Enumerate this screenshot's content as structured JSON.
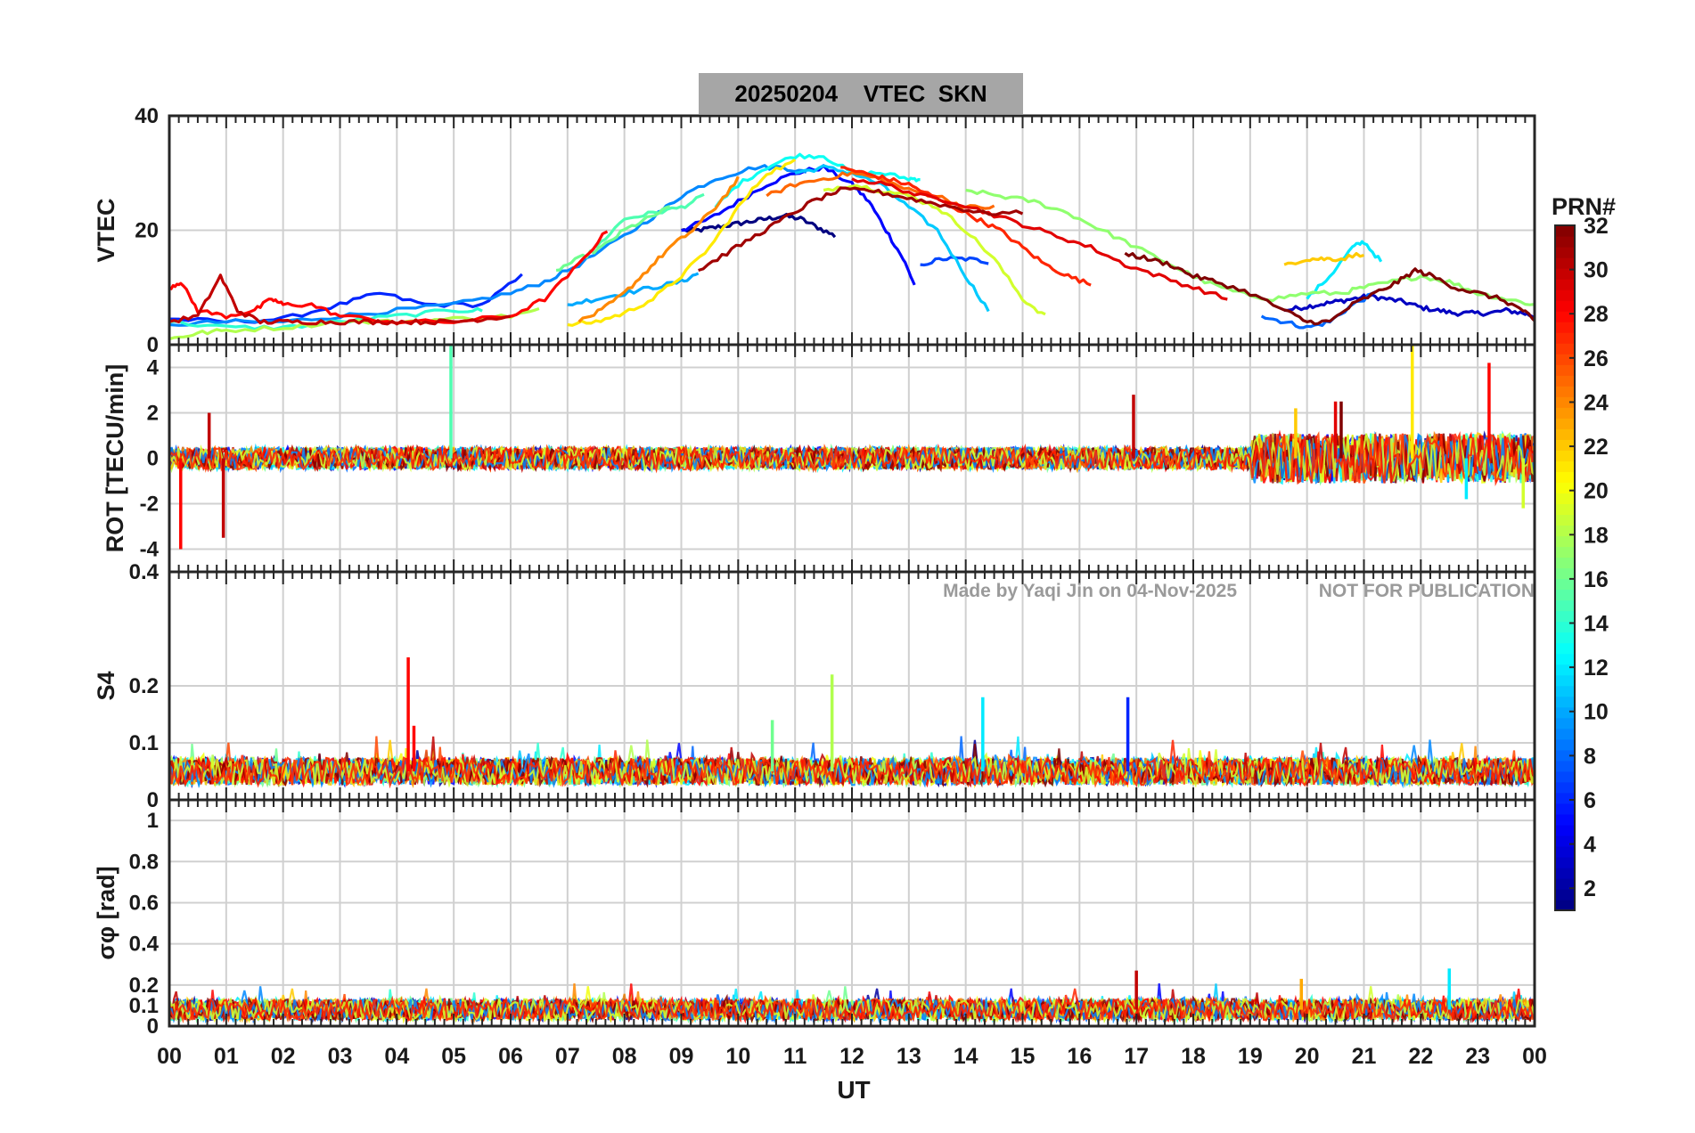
{
  "figure": {
    "title": "20250204    VTEC  SKN",
    "watermark_left": "Made by Yaqi Jin on 04-Nov-2025",
    "watermark_right": "NOT FOR PUBLICATION",
    "xlabel": "UT",
    "x_ticks": [
      "00",
      "01",
      "02",
      "03",
      "04",
      "05",
      "06",
      "07",
      "08",
      "09",
      "10",
      "11",
      "12",
      "13",
      "14",
      "15",
      "16",
      "17",
      "18",
      "19",
      "20",
      "21",
      "22",
      "23",
      "00"
    ]
  },
  "colorbar": {
    "label": "PRN#",
    "ticks": [
      "2",
      "4",
      "6",
      "8",
      "10",
      "12",
      "14",
      "16",
      "18",
      "20",
      "22",
      "24",
      "26",
      "28",
      "30",
      "32"
    ],
    "range": [
      1,
      32
    ],
    "colormap": "jet"
  },
  "chart_data": [
    {
      "type": "line",
      "panel": "VTEC",
      "ylabel": "VTEC",
      "xlim": [
        0,
        24
      ],
      "ylim": [
        0,
        40
      ],
      "y_ticks": [
        "0",
        "20",
        "40"
      ],
      "series": [
        {
          "prn": 1,
          "x": [
            9.0,
            9.3,
            9.6,
            9.9,
            10.2,
            10.5,
            10.8,
            11.1,
            11.4,
            11.7
          ],
          "y": [
            20,
            20,
            20.5,
            21,
            21.5,
            22,
            22.5,
            22,
            20.5,
            19
          ]
        },
        {
          "prn": 3,
          "x": [
            19.6,
            19.9,
            20.2,
            20.5,
            20.8,
            21.1,
            21.4,
            21.7,
            22.0,
            22.3,
            22.6,
            22.9,
            23.2,
            23.5,
            23.8,
            24
          ],
          "y": [
            6,
            6.5,
            7,
            7.5,
            8,
            8.5,
            8,
            7.5,
            6.5,
            6,
            5.5,
            5.5,
            5.5,
            6,
            5.5,
            5
          ]
        },
        {
          "prn": 5,
          "x": [
            9.0,
            9.5,
            10.0,
            10.5,
            11.0,
            11.5,
            12.0,
            12.3,
            12.6,
            12.9,
            13.1
          ],
          "y": [
            20,
            22,
            25,
            28,
            30,
            31,
            28,
            25,
            20,
            15,
            10.5
          ]
        },
        {
          "prn": 6,
          "x": [
            0.0,
            1.0,
            2.0,
            3.0,
            3.7,
            4.5,
            5.5,
            6.2
          ],
          "y": [
            4.5,
            4,
            4.5,
            7,
            9,
            7,
            7,
            12
          ]
        },
        {
          "prn": 7,
          "x": [
            13.2,
            13.6,
            14.0,
            14.4
          ],
          "y": [
            14,
            15,
            15,
            14.5
          ]
        },
        {
          "prn": 8,
          "x": [
            19.2,
            19.6,
            20.0,
            20.4,
            20.8,
            21.2
          ],
          "y": [
            5,
            4,
            3,
            4,
            7,
            9
          ]
        },
        {
          "prn": 9,
          "x": [
            0.0,
            1.0,
            2.0,
            3.0,
            4.0,
            5.0,
            6.0,
            6.6,
            7.2,
            8.0,
            8.6,
            9.0,
            9.6,
            10.3,
            10.8,
            11.2
          ],
          "y": [
            3.5,
            4,
            4,
            5,
            6,
            7,
            9,
            11,
            14,
            19,
            23,
            26,
            29,
            31,
            31,
            30
          ]
        },
        {
          "prn": 10,
          "x": [
            7.0,
            7.5,
            8.0,
            8.5,
            9.0,
            9.3
          ],
          "y": [
            7,
            8,
            9,
            10,
            11,
            12.5
          ]
        },
        {
          "prn": 11,
          "x": [
            11.0,
            11.5,
            12.0,
            12.5,
            13.0,
            13.5,
            14.0,
            14.4
          ],
          "y": [
            30,
            31,
            30,
            28,
            24,
            20,
            12,
            6
          ]
        },
        {
          "prn": 12,
          "x": [
            20.0,
            20.4,
            20.8,
            21.0,
            21.3
          ],
          "y": [
            8,
            12,
            17,
            18,
            14.5
          ]
        },
        {
          "prn": 13,
          "x": [
            9.6,
            10.0,
            10.5,
            11.0,
            11.5,
            12.0,
            12.5,
            13.0,
            13.2
          ],
          "y": [
            24,
            28,
            31,
            33,
            33,
            30,
            30,
            29,
            29
          ]
        },
        {
          "prn": 14,
          "x": [
            0.0,
            1.0,
            2.0,
            3.0,
            4.0,
            5.0,
            5.5
          ],
          "y": [
            4,
            3,
            3,
            4,
            5,
            6,
            6
          ]
        },
        {
          "prn": 15,
          "x": [
            7.5,
            8.0,
            8.5,
            9.0,
            9.4
          ],
          "y": [
            17,
            22,
            23,
            24,
            26
          ]
        },
        {
          "prn": 16,
          "x": [
            6.8,
            7.2,
            7.6,
            8.0,
            8.4,
            8.8
          ],
          "y": [
            13,
            15,
            17,
            20,
            22,
            24
          ]
        },
        {
          "prn": 17,
          "x": [
            14.0,
            14.6,
            15.2,
            15.8,
            16.4,
            17.0,
            17.6,
            18.2,
            18.8,
            19.4,
            20.0,
            20.6,
            21.0,
            21.5,
            22.0,
            22.5,
            23.0,
            23.5,
            24
          ],
          "y": [
            27,
            26,
            25,
            23,
            20,
            17,
            14,
            11,
            9,
            8,
            9,
            9,
            10,
            11,
            12,
            11,
            9,
            8,
            7
          ]
        },
        {
          "prn": 18,
          "x": [
            0.0,
            0.5,
            1.0,
            2.0,
            3.0,
            4.0,
            5.0,
            6.0,
            6.5
          ],
          "y": [
            1,
            2,
            2.5,
            3,
            4,
            4,
            4.5,
            5,
            6
          ]
        },
        {
          "prn": 19,
          "x": [
            11.5,
            12.0,
            12.5,
            13.0,
            13.5,
            14.0,
            14.5,
            15.0,
            15.4
          ],
          "y": [
            27,
            28,
            27,
            26,
            24,
            20,
            15,
            8,
            5
          ]
        },
        {
          "prn": 21,
          "x": [
            7.0,
            7.5,
            8.0,
            8.5,
            9.0,
            9.5,
            10.0,
            10.5,
            11.0
          ],
          "y": [
            3.5,
            4,
            5.5,
            8,
            12,
            17,
            24,
            30,
            32
          ]
        },
        {
          "prn": 22,
          "x": [
            19.6,
            20.0,
            20.3,
            20.6,
            21.0
          ],
          "y": [
            14,
            15,
            15,
            15,
            16
          ]
        },
        {
          "prn": 24,
          "x": [
            7.2,
            7.6,
            8.0,
            8.4,
            8.8,
            9.2,
            9.6,
            10.0
          ],
          "y": [
            4,
            6,
            9,
            13,
            17,
            20,
            24,
            29
          ]
        },
        {
          "prn": 25,
          "x": [
            10.5,
            11.0,
            11.5,
            12.0,
            12.5,
            13.0,
            13.5,
            14.0,
            14.5
          ],
          "y": [
            26,
            28,
            29,
            30,
            29,
            27,
            26,
            24,
            24
          ]
        },
        {
          "prn": 27,
          "x": [
            11.8,
            12.2,
            12.6,
            13.0,
            13.4,
            13.8,
            14.2,
            14.6,
            15.0,
            15.4,
            15.8,
            16.2
          ],
          "y": [
            31,
            30,
            29,
            28,
            26,
            24,
            22,
            20,
            17,
            14,
            12,
            10.5
          ]
        },
        {
          "prn": 28,
          "x": [
            0.0,
            0.2,
            0.5,
            1.0,
            1.5,
            1.8,
            2.0,
            2.5,
            3.0,
            4.0,
            5.0,
            6.0,
            6.6,
            7.2,
            7.7
          ],
          "y": [
            10,
            11,
            6,
            5,
            6,
            8,
            7,
            7,
            5,
            4,
            4,
            5,
            8,
            14,
            20
          ]
        },
        {
          "prn": 29,
          "x": [
            12.0,
            12.6,
            13.2,
            13.8,
            14.4,
            15.0,
            15.6,
            16.2,
            16.8,
            17.4,
            18.0,
            18.6
          ],
          "y": [
            29,
            28,
            26,
            25,
            23,
            21,
            19,
            17,
            14,
            12,
            10,
            8
          ]
        },
        {
          "prn": 30,
          "x": [
            0.0,
            0.5,
            0.9,
            1.2,
            1.6,
            2.0,
            2.5,
            3.0,
            3.5,
            4.0,
            4.5,
            5.0,
            5.5,
            6.0
          ],
          "y": [
            4,
            5,
            12,
            6,
            4,
            4,
            4,
            4,
            4,
            4,
            4,
            4,
            4.5,
            5
          ]
        },
        {
          "prn": 31,
          "x": [
            9.3,
            9.8,
            10.3,
            10.8,
            11.3,
            11.8,
            12.3,
            12.8,
            13.3,
            13.8,
            14.3,
            15.0
          ],
          "y": [
            13,
            16,
            19,
            22,
            25,
            27,
            27,
            26,
            25,
            24,
            23,
            23
          ]
        },
        {
          "prn": 32,
          "x": [
            16.8,
            17.2,
            17.6,
            18.0,
            18.4,
            19.0,
            19.6,
            20.0,
            20.4,
            20.8,
            21.2,
            21.6,
            21.9,
            22.2,
            22.6,
            23.0,
            23.4,
            23.8,
            24
          ],
          "y": [
            16,
            15,
            14,
            12,
            11,
            9,
            6,
            4,
            4,
            7,
            9,
            11,
            13,
            12,
            10,
            9,
            8,
            6,
            4
          ]
        }
      ]
    },
    {
      "type": "line",
      "panel": "ROT",
      "ylabel": "ROT [TECU/min]",
      "xlim": [
        0,
        24
      ],
      "ylim": [
        -5,
        5
      ],
      "y_ticks": [
        "-4",
        "-2",
        "0",
        "2",
        "4"
      ],
      "spikes": [
        {
          "x": 0.2,
          "y": -4.0,
          "prn": 28
        },
        {
          "x": 0.7,
          "y": 2.0,
          "prn": 30
        },
        {
          "x": 0.95,
          "y": -3.5,
          "prn": 30
        },
        {
          "x": 4.95,
          "y": 5.0,
          "prn": 15
        },
        {
          "x": 16.95,
          "y": 2.8,
          "prn": 30
        },
        {
          "x": 19.8,
          "y": 2.2,
          "prn": 22
        },
        {
          "x": 20.5,
          "y": 2.5,
          "prn": 29
        },
        {
          "x": 20.6,
          "y": 2.5,
          "prn": 32
        },
        {
          "x": 21.85,
          "y": 5.0,
          "prn": 21
        },
        {
          "x": 22.8,
          "y": -1.8,
          "prn": 12
        },
        {
          "x": 23.2,
          "y": 4.2,
          "prn": 28
        },
        {
          "x": 23.8,
          "y": -2.2,
          "prn": 19
        }
      ],
      "noise_band": {
        "x_from": 0,
        "x_to": 24,
        "typical_abs_y": 0.5
      }
    },
    {
      "type": "line",
      "panel": "S4",
      "ylabel": "S4",
      "xlim": [
        0,
        24
      ],
      "ylim": [
        0,
        0.4
      ],
      "y_ticks": [
        "0",
        "0.1",
        "0.2",
        "0.4"
      ],
      "spikes": [
        {
          "x": 4.2,
          "y": 0.25,
          "prn": 28
        },
        {
          "x": 4.3,
          "y": 0.13,
          "prn": 28
        },
        {
          "x": 10.6,
          "y": 0.14,
          "prn": 16
        },
        {
          "x": 11.65,
          "y": 0.22,
          "prn": 18
        },
        {
          "x": 14.3,
          "y": 0.18,
          "prn": 12
        },
        {
          "x": 16.85,
          "y": 0.18,
          "prn": 6
        }
      ],
      "noise_band": {
        "x_from": 0,
        "x_to": 24,
        "baseline_y": 0.05,
        "typical_range": [
          0.03,
          0.09
        ]
      }
    },
    {
      "type": "line",
      "panel": "sigma_phi",
      "ylabel": "σφ [rad]",
      "xlim": [
        0,
        24
      ],
      "ylim": [
        0,
        1.1
      ],
      "y_ticks": [
        "0",
        "0.1",
        "0.2",
        "0.4",
        "0.6",
        "0.8",
        "1"
      ],
      "spikes": [
        {
          "x": 17.0,
          "y": 0.27,
          "prn": 30
        },
        {
          "x": 19.9,
          "y": 0.23,
          "prn": 23
        },
        {
          "x": 22.5,
          "y": 0.28,
          "prn": 12
        }
      ],
      "noise_band": {
        "x_from": 0,
        "x_to": 24,
        "baseline_y": 0.08,
        "typical_range": [
          0.03,
          0.16
        ]
      }
    }
  ]
}
